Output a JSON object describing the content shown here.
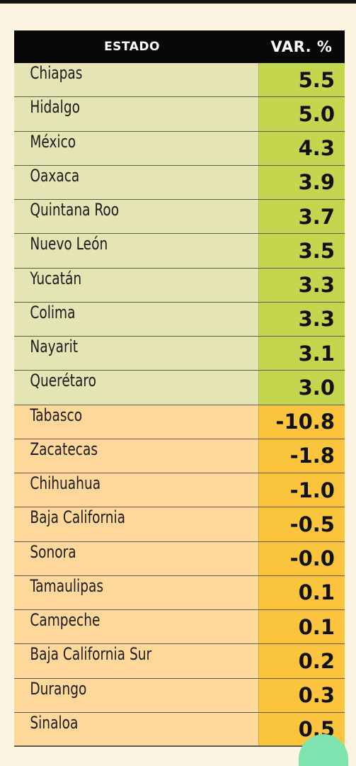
{
  "chart_data": {
    "type": "table",
    "columns": [
      "ESTADO",
      "VAR. %"
    ],
    "rows": [
      {
        "estado": "Chiapas",
        "var": "5.5",
        "group": "pos"
      },
      {
        "estado": "Hidalgo",
        "var": "5.0",
        "group": "pos"
      },
      {
        "estado": "México",
        "var": "4.3",
        "group": "pos"
      },
      {
        "estado": "Oaxaca",
        "var": "3.9",
        "group": "pos"
      },
      {
        "estado": "Quintana Roo",
        "var": "3.7",
        "group": "pos"
      },
      {
        "estado": "Nuevo León",
        "var": "3.5",
        "group": "pos"
      },
      {
        "estado": "Yucatán",
        "var": "3.3",
        "group": "pos"
      },
      {
        "estado": "Colima",
        "var": "3.3",
        "group": "pos"
      },
      {
        "estado": "Nayarit",
        "var": "3.1",
        "group": "pos"
      },
      {
        "estado": "Querétaro",
        "var": "3.0",
        "group": "pos"
      },
      {
        "estado": "Tabasco",
        "var": "-10.8",
        "group": "neg"
      },
      {
        "estado": "Zacatecas",
        "var": "-1.8",
        "group": "neg"
      },
      {
        "estado": "Chihuahua",
        "var": "-1.0",
        "group": "neg"
      },
      {
        "estado": "Baja California",
        "var": "-0.5",
        "group": "neg"
      },
      {
        "estado": "Sonora",
        "var": "-0.0",
        "group": "neg"
      },
      {
        "estado": "Tamaulipas",
        "var": "0.1",
        "group": "neg"
      },
      {
        "estado": "Campeche",
        "var": "0.1",
        "group": "neg"
      },
      {
        "estado": "Baja California Sur",
        "var": "0.2",
        "group": "neg"
      },
      {
        "estado": "Durango",
        "var": "0.3",
        "group": "neg"
      },
      {
        "estado": "Sinaloa",
        "var": "0.5",
        "group": "neg"
      }
    ]
  },
  "colors": {
    "header_bg": "#080808",
    "top_name_bg": "#e4e4b5",
    "top_value_bg": "#c4d64d",
    "bottom_name_bg": "#fed79a",
    "bottom_value_bg": "#fbc43d",
    "page_bg": "#fdf4e1"
  }
}
